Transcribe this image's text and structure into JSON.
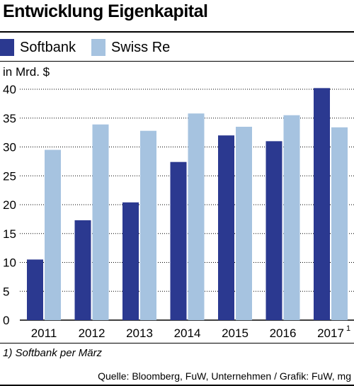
{
  "title": "Entwicklung Eigenkapital",
  "unit_label": "in Mrd. $",
  "footnote": "1) Softbank per März",
  "source": "Quelle: Bloomberg, FuW, Unternehmen / Grafik: FuW, mg",
  "colors": {
    "softbank": "#2b3990",
    "swiss_re": "#a6c3e0",
    "grid": "#000000"
  },
  "chart_data": {
    "type": "bar",
    "title": "Entwicklung Eigenkapital",
    "ylabel": "in Mrd. $",
    "xlabel": "",
    "categories": [
      "2011",
      "2012",
      "2013",
      "2014",
      "2015",
      "2016",
      "2017"
    ],
    "category_superscripts": [
      "",
      "",
      "",
      "",
      "",
      "",
      "1"
    ],
    "ylim": [
      0,
      40
    ],
    "yticks": [
      0,
      5,
      10,
      15,
      20,
      25,
      30,
      35,
      40
    ],
    "grid": "horizontal dotted",
    "legend_position": "top-left",
    "series": [
      {
        "name": "Softbank",
        "color": "#2b3990",
        "values": [
          10.5,
          17.3,
          20.4,
          27.4,
          32.0,
          31.0,
          40.2
        ]
      },
      {
        "name": "Swiss Re",
        "color": "#a6c3e0",
        "values": [
          29.5,
          33.9,
          32.8,
          35.8,
          33.5,
          35.5,
          33.4
        ]
      }
    ]
  }
}
